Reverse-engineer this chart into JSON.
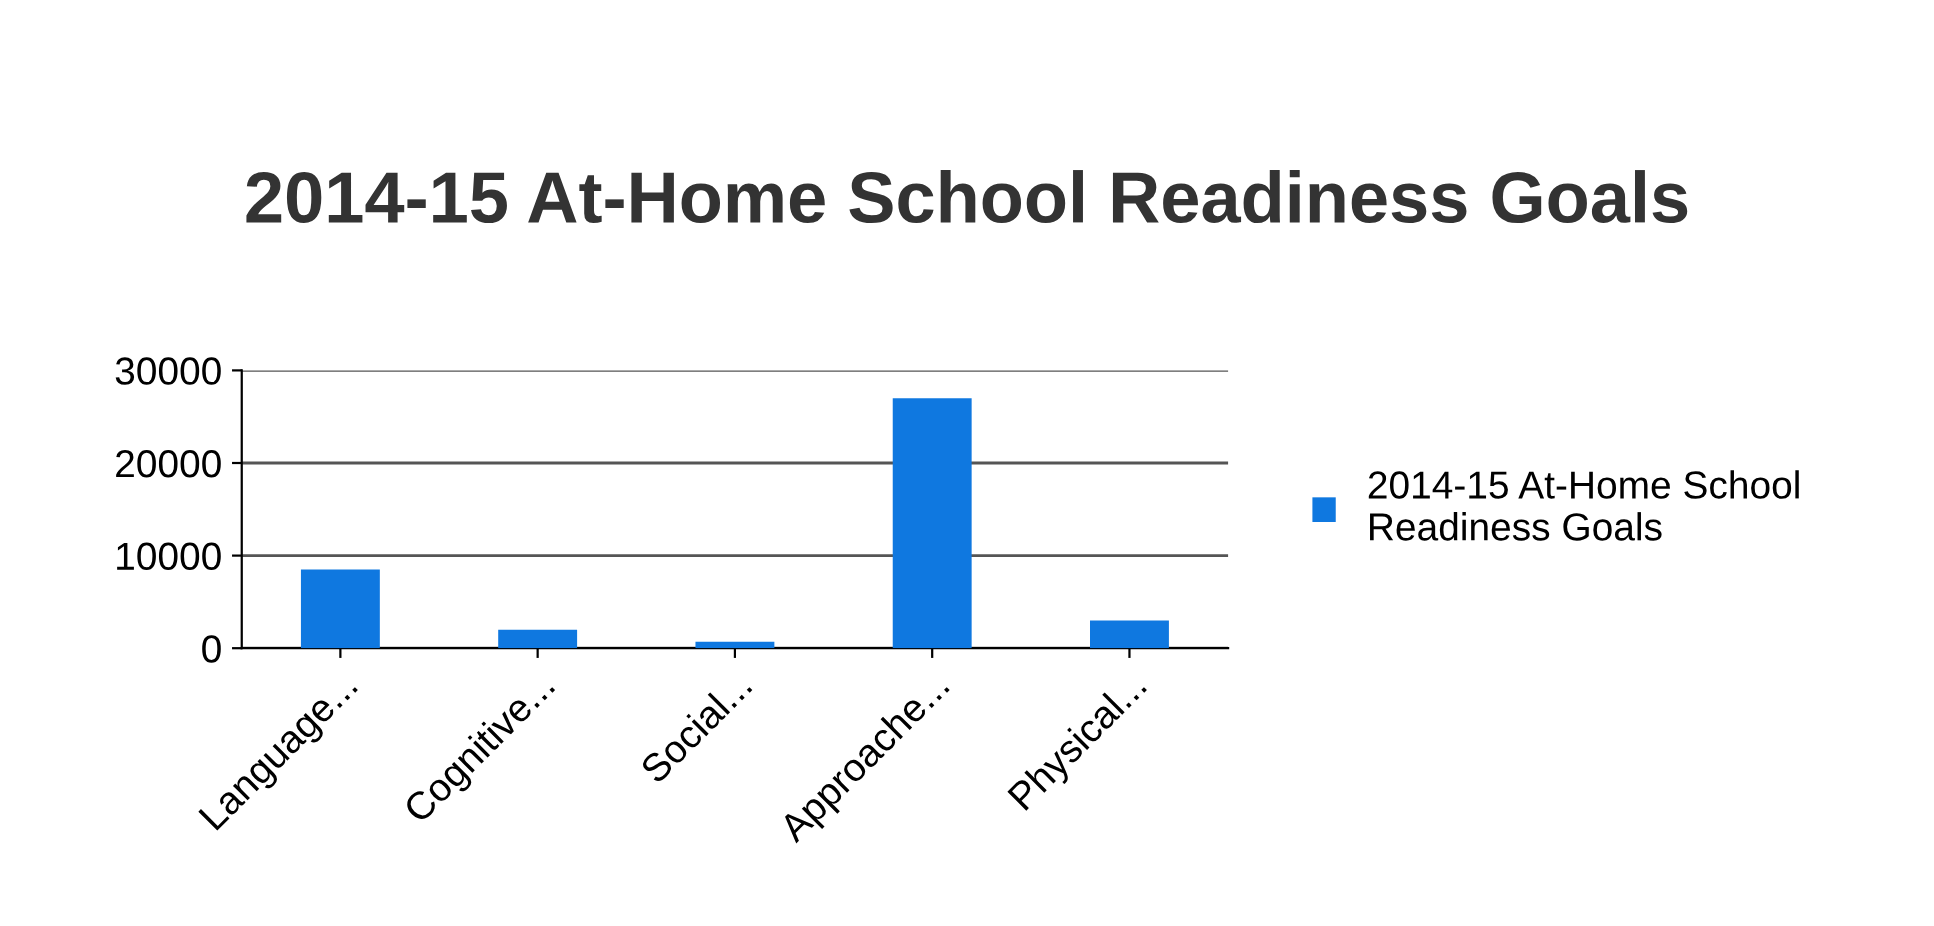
{
  "chart_data": {
    "type": "bar",
    "title": "2014-15 At-Home School Readiness Goals",
    "categories": [
      "Language...",
      "Cognitive...",
      "Social...",
      "Approache...",
      "Physical..."
    ],
    "series": [
      {
        "name": "2014-15 At-Home School Readiness Goals",
        "color": "#0f78e0",
        "values": [
          8500,
          2000,
          700,
          27000,
          3000
        ]
      }
    ],
    "ylim": [
      0,
      30000
    ],
    "yticks": [
      0,
      10000,
      20000,
      30000
    ],
    "grid": "y",
    "legend": "right"
  }
}
